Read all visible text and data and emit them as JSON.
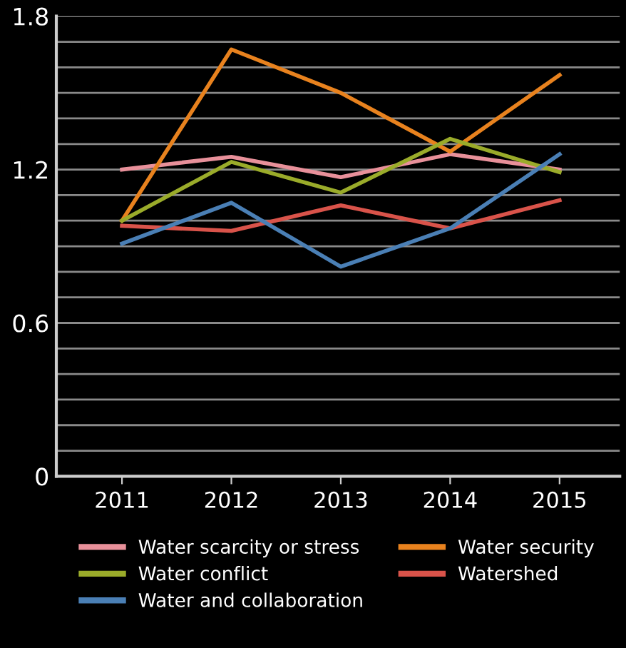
{
  "chart_data": {
    "type": "line",
    "categories": [
      "2011",
      "2012",
      "2013",
      "2014",
      "2015"
    ],
    "series": [
      {
        "name": "Water scarcity or stress",
        "color": "#e8909a",
        "values": [
          1.2,
          1.25,
          1.17,
          1.26,
          1.2
        ]
      },
      {
        "name": "Water security",
        "color": "#e8821e",
        "values": [
          1.0,
          1.67,
          1.5,
          1.27,
          1.57
        ]
      },
      {
        "name": "Water conflict",
        "color": "#9aab2a",
        "values": [
          1.0,
          1.23,
          1.11,
          1.32,
          1.19
        ]
      },
      {
        "name": "Watershed",
        "color": "#d9534a",
        "values": [
          0.98,
          0.96,
          1.06,
          0.97,
          1.08
        ]
      },
      {
        "name": "Water and collaboration",
        "color": "#4a7fb5",
        "values": [
          0.91,
          1.07,
          0.82,
          0.97,
          1.26
        ]
      }
    ],
    "ylim": [
      0,
      1.8
    ],
    "yticks": [
      0,
      {
        "value": 0.1,
        "label": null
      },
      {
        "value": 0.2,
        "label": null
      },
      {
        "value": 0.3,
        "label": null
      },
      {
        "value": 0.4,
        "label": null
      },
      {
        "value": 0.5,
        "label": null
      },
      0.6,
      {
        "value": 0.7,
        "label": null
      },
      {
        "value": 0.8,
        "label": null
      },
      {
        "value": 0.9,
        "label": null
      },
      {
        "value": 1.0,
        "label": null
      },
      {
        "value": 1.1,
        "label": null
      },
      1.2,
      {
        "value": 1.3,
        "label": null
      },
      {
        "value": 1.4,
        "label": null
      },
      {
        "value": 1.5,
        "label": null
      },
      {
        "value": 1.6,
        "label": null
      },
      {
        "value": 1.7,
        "label": null
      },
      1.8
    ],
    "grid": "y",
    "legend": "bottom",
    "marker": "none",
    "line_style": "solid"
  }
}
